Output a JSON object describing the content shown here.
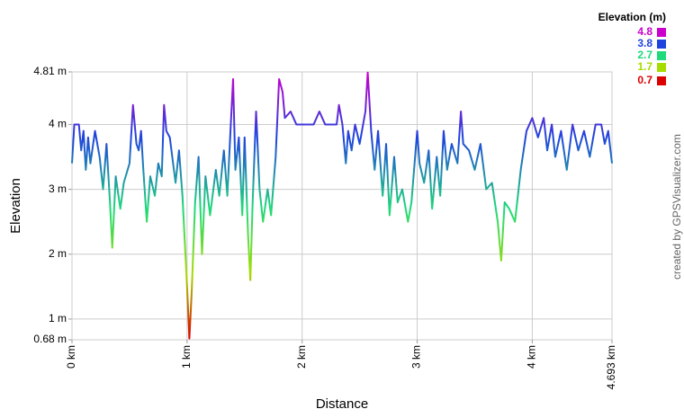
{
  "chart_data": {
    "type": "line",
    "x_label": "Distance",
    "y_label": "Elevation",
    "legend_title": "Elevation (m)",
    "color_scale": [
      {
        "value": 4.8,
        "color": "#cc00cc"
      },
      {
        "value": 3.8,
        "color": "#1f44dd"
      },
      {
        "value": 2.7,
        "color": "#1fd97a"
      },
      {
        "value": 1.7,
        "color": "#a6dc00"
      },
      {
        "value": 0.7,
        "color": "#dd0000"
      }
    ],
    "credit": "created by GPSVisualizer.com",
    "xlim": [
      0,
      4.693
    ],
    "xticks": [
      {
        "value": 0,
        "label": "0 km"
      },
      {
        "value": 1,
        "label": "1 km"
      },
      {
        "value": 2,
        "label": "2 km"
      },
      {
        "value": 3,
        "label": "3 km"
      },
      {
        "value": 4,
        "label": "4 km"
      },
      {
        "value": 4.693,
        "label": "4.693 km"
      }
    ],
    "ylim": [
      0.68,
      4.81
    ],
    "yticks": [
      {
        "value": 0.68,
        "label": "0.68 m"
      },
      {
        "value": 1,
        "label": "1 m"
      },
      {
        "value": 2,
        "label": "2 m"
      },
      {
        "value": 3,
        "label": "3 m"
      },
      {
        "value": 4,
        "label": "4 m"
      },
      {
        "value": 4.81,
        "label": "4.81 m"
      }
    ],
    "grid": true,
    "x": [
      0,
      0.02,
      0.06,
      0.08,
      0.1,
      0.12,
      0.14,
      0.16,
      0.2,
      0.24,
      0.27,
      0.3,
      0.33,
      0.35,
      0.38,
      0.42,
      0.45,
      0.5,
      0.53,
      0.56,
      0.58,
      0.6,
      0.62,
      0.65,
      0.68,
      0.72,
      0.75,
      0.78,
      0.8,
      0.82,
      0.85,
      0.9,
      0.93,
      0.96,
      1.0,
      1.02,
      1.04,
      1.07,
      1.1,
      1.13,
      1.16,
      1.2,
      1.25,
      1.28,
      1.32,
      1.35,
      1.38,
      1.4,
      1.42,
      1.45,
      1.48,
      1.5,
      1.53,
      1.55,
      1.57,
      1.6,
      1.63,
      1.66,
      1.7,
      1.73,
      1.77,
      1.8,
      1.83,
      1.85,
      1.9,
      1.95,
      2.0,
      2.05,
      2.1,
      2.15,
      2.2,
      2.3,
      2.32,
      2.35,
      2.38,
      2.4,
      2.43,
      2.46,
      2.5,
      2.55,
      2.57,
      2.6,
      2.63,
      2.66,
      2.7,
      2.73,
      2.76,
      2.8,
      2.83,
      2.87,
      2.92,
      2.95,
      3.0,
      3.02,
      3.06,
      3.1,
      3.13,
      3.17,
      3.2,
      3.23,
      3.26,
      3.3,
      3.35,
      3.38,
      3.4,
      3.45,
      3.5,
      3.55,
      3.6,
      3.65,
      3.7,
      3.73,
      3.76,
      3.8,
      3.85,
      3.9,
      3.95,
      4.0,
      4.05,
      4.1,
      4.13,
      4.17,
      4.2,
      4.25,
      4.3,
      4.35,
      4.4,
      4.45,
      4.5,
      4.55,
      4.6,
      4.63,
      4.66,
      4.693
    ],
    "values": [
      3.4,
      4.0,
      4.0,
      3.6,
      3.9,
      3.3,
      3.8,
      3.4,
      3.9,
      3.5,
      3.0,
      3.7,
      2.8,
      2.1,
      3.2,
      2.7,
      3.1,
      3.4,
      4.3,
      3.7,
      3.6,
      3.9,
      3.3,
      2.5,
      3.2,
      2.9,
      3.4,
      3.2,
      4.3,
      3.9,
      3.8,
      3.1,
      3.6,
      2.9,
      1.5,
      0.7,
      1.4,
      2.8,
      3.5,
      2.0,
      3.2,
      2.6,
      3.3,
      2.9,
      3.6,
      2.9,
      4.0,
      4.7,
      3.3,
      3.8,
      2.6,
      3.8,
      2.3,
      1.6,
      2.8,
      4.2,
      3.0,
      2.5,
      3.0,
      2.6,
      3.5,
      4.7,
      4.5,
      4.1,
      4.2,
      4.0,
      4.0,
      4.0,
      4.0,
      4.2,
      4.0,
      4.0,
      4.3,
      4.0,
      3.4,
      3.9,
      3.6,
      4.0,
      3.7,
      4.2,
      4.8,
      3.9,
      3.3,
      3.9,
      2.9,
      3.7,
      2.6,
      3.5,
      2.8,
      3.0,
      2.5,
      2.8,
      3.9,
      3.4,
      3.1,
      3.6,
      2.7,
      3.5,
      2.9,
      3.9,
      3.3,
      3.7,
      3.4,
      4.2,
      3.7,
      3.6,
      3.3,
      3.7,
      3.0,
      3.1,
      2.5,
      1.9,
      2.8,
      2.7,
      2.5,
      3.3,
      3.9,
      4.1,
      3.8,
      4.1,
      3.6,
      4.0,
      3.5,
      3.9,
      3.3,
      4.0,
      3.6,
      3.9,
      3.5,
      4.0,
      4.0,
      3.7,
      3.9,
      3.4
    ]
  }
}
